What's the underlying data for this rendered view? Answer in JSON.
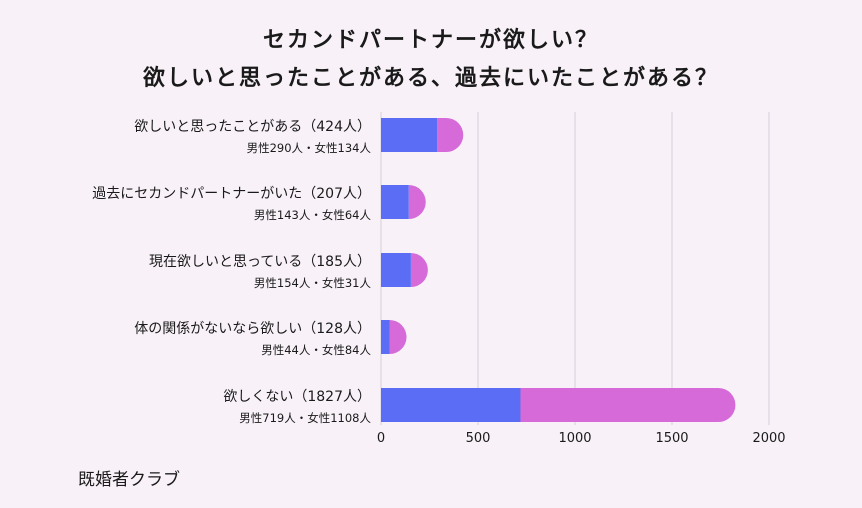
{
  "title": {
    "line1": "セカンドパートナーが欲しい？",
    "line2": "欲しいと思ったことがある、過去にいたことがある？"
  },
  "source": "既婚者クラブ",
  "colors": {
    "male": "#5b6df5",
    "female": "#d56ad8",
    "grid": "#d8cfd8",
    "background": "#f8f2f8"
  },
  "chart_data": {
    "type": "bar",
    "orientation": "horizontal",
    "stacked": true,
    "title": "セカンドパートナーが欲しい？ 欲しいと思ったことがある、過去にいたことがある？",
    "xlim": [
      0,
      2000
    ],
    "xticks": [
      0,
      500,
      1000,
      1500,
      2000
    ],
    "grid": true,
    "categories": [
      "欲しいと思ったことがある（424人）",
      "過去にセカンドパートナーがいた（207人）",
      "現在欲しいと思っている（185人）",
      "体の関係がないなら欲しい（128人）",
      "欲しくない（1827人）"
    ],
    "sublabels": [
      "男性290人・女性134人",
      "男性143人・女性64人",
      "男性154人・女性31人",
      "男性44人・女性84人",
      "男性719人・女性1108人"
    ],
    "series": [
      {
        "values": [
          290,
          143,
          154,
          44,
          719
        ]
      },
      {
        "values": [
          134,
          64,
          31,
          84,
          1108
        ]
      }
    ]
  }
}
